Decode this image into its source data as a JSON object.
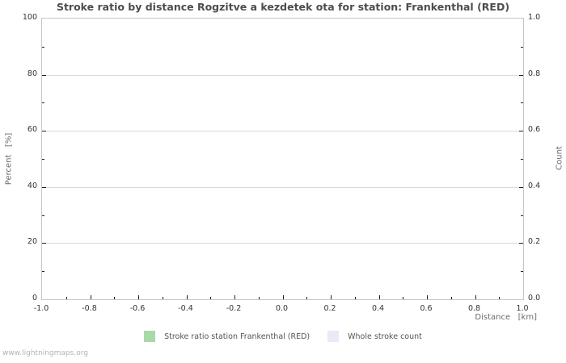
{
  "watermark": "www.lightningmaps.org",
  "colors": {
    "plot_border": "#c6c6c6",
    "gridline": "#dadada",
    "tick": "#1f1f1f",
    "tick_label": "#333333",
    "title_text": "#4d4d4d",
    "axis_title_text": "#6b6b6b",
    "legend_text": "#555555",
    "watermark_text": "#b3b3b3",
    "series_ratio": "#a9d8a9",
    "series_count": "#e9e9f8"
  },
  "chart_data": {
    "type": "line",
    "title": "Stroke ratio by distance Rogzitve a kezdetek ota for station: Frankenthal (RED)",
    "grid": true,
    "legend_position": "bottom",
    "x_axis": {
      "label": "Distance   [km]",
      "min": -1.0,
      "max": 1.0,
      "minor_step": 0.1,
      "major_ticks": [
        -1.0,
        -0.8,
        -0.6,
        -0.4,
        -0.2,
        0.0,
        0.2,
        0.4,
        0.6,
        0.8,
        1.0
      ],
      "tick_labels": [
        "-1.0",
        "-0.8",
        "-0.6",
        "-0.4",
        "-0.2",
        "0.0",
        "0.2",
        "0.4",
        "0.6",
        "0.8",
        "1.0"
      ]
    },
    "y_axis_left": {
      "label": "Percent   [%]",
      "min": 0,
      "max": 100,
      "minor_step": 10,
      "major_ticks": [
        0,
        20,
        40,
        60,
        80,
        100
      ],
      "tick_labels": [
        "0",
        "20",
        "40",
        "60",
        "80",
        "100"
      ]
    },
    "y_axis_right": {
      "label": "Count",
      "min": 0.0,
      "max": 1.0,
      "minor_step": 0.1,
      "major_ticks": [
        0.0,
        0.2,
        0.4,
        0.6,
        0.8,
        1.0
      ],
      "tick_labels": [
        "0.0",
        "0.2",
        "0.4",
        "0.6",
        "0.8",
        "1.0"
      ]
    },
    "series": [
      {
        "name": "Stroke ratio station Frankenthal (RED)",
        "color": "#a9d8a9",
        "axis": "left",
        "x": [],
        "values": []
      },
      {
        "name": "Whole stroke count",
        "color": "#e9e9f8",
        "axis": "right",
        "x": [],
        "values": []
      }
    ]
  }
}
